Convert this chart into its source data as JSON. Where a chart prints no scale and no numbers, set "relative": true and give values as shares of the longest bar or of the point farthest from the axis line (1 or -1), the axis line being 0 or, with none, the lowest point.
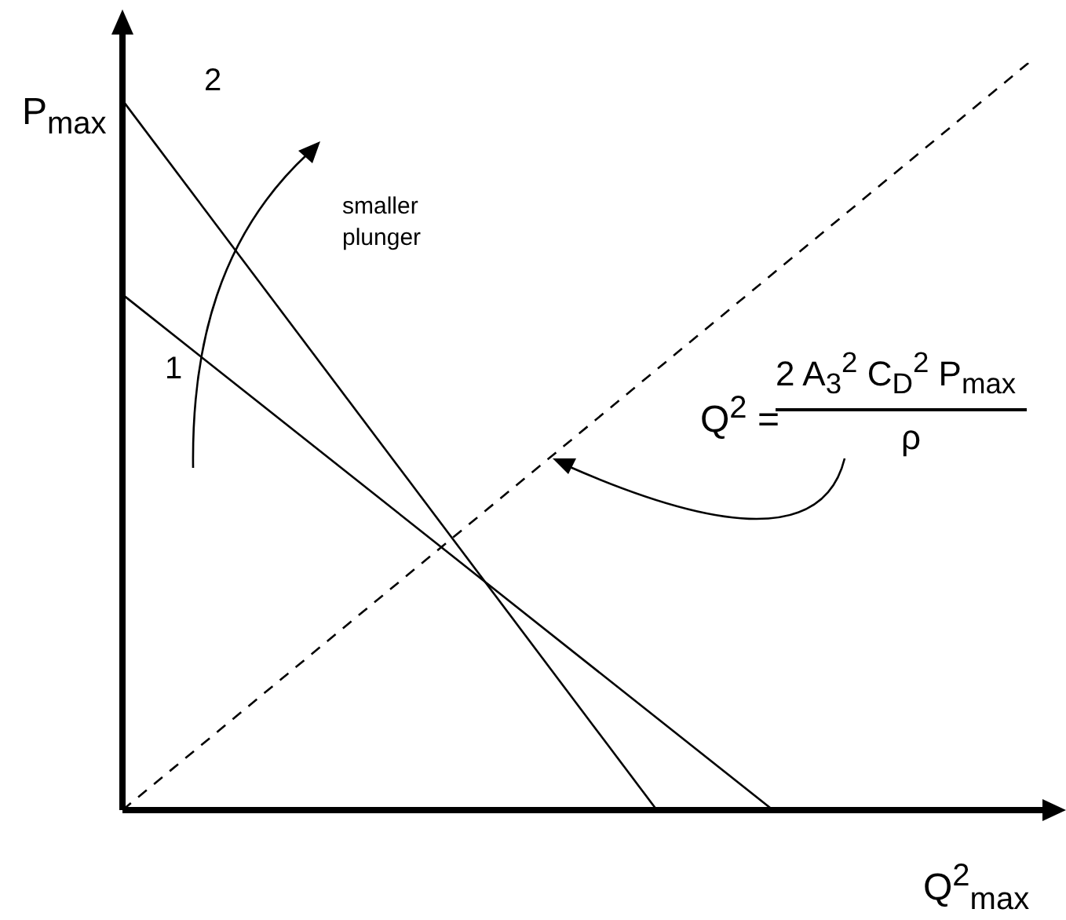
{
  "chart_data": {
    "type": "line",
    "relative": true,
    "xlabel": "Q$^{2}$$_{max}$",
    "ylabel": "P$_{max}$",
    "categories": [
      null,
      null,
      null,
      null,
      null,
      null,
      null,
      null,
      null,
      null,
      null,
      null,
      null,
      null,
      null,
      null,
      null,
      null,
      null,
      null,
      null,
      null,
      null,
      null,
      null,
      null,
      null,
      null,
      null,
      null,
      null,
      null,
      null,
      null,
      null,
      null,
      null,
      null,
      null,
      null,
      null
    ],
    "series": [
      {
        "name": "1",
        "color": "#000000",
        "line_style": "solid",
        "values": [
          0.69,
          null,
          null,
          null,
          null,
          null,
          null,
          null,
          null,
          null,
          null,
          null,
          null,
          null,
          null,
          null,
          null,
          null,
          null,
          null,
          null,
          null,
          null,
          null,
          null,
          null,
          null,
          null,
          0,
          null,
          null,
          null,
          null,
          null,
          null,
          null,
          null,
          null,
          null,
          null,
          null
        ]
      },
      {
        "name": "2",
        "color": "#000000",
        "line_style": "solid",
        "values": [
          0.95,
          null,
          null,
          null,
          null,
          null,
          null,
          null,
          null,
          null,
          null,
          null,
          null,
          null,
          null,
          null,
          null,
          null,
          null,
          null,
          null,
          null,
          null,
          0,
          null,
          null,
          null,
          null,
          null,
          null,
          null,
          null,
          null,
          null,
          null,
          null,
          null,
          null,
          null,
          null,
          null
        ]
      },
      {
        "color": "#000000",
        "line_style": "dashed",
        "values": [
          0,
          null,
          null,
          null,
          null,
          null,
          null,
          null,
          null,
          null,
          null,
          null,
          null,
          null,
          null,
          null,
          null,
          null,
          null,
          null,
          null,
          null,
          null,
          null,
          null,
          null,
          null,
          null,
          null,
          null,
          null,
          null,
          null,
          null,
          null,
          null,
          null,
          null,
          null,
          1,
          null
        ]
      }
    ],
    "annotations": [
      "smaller plunger",
      "Q$^{2}$ =",
      "2 A$_{3}$$^{2}$ C$_{D}$$^{2}$ P$_{max}$",
      "ρ"
    ],
    "legend": false,
    "marker": "none"
  }
}
